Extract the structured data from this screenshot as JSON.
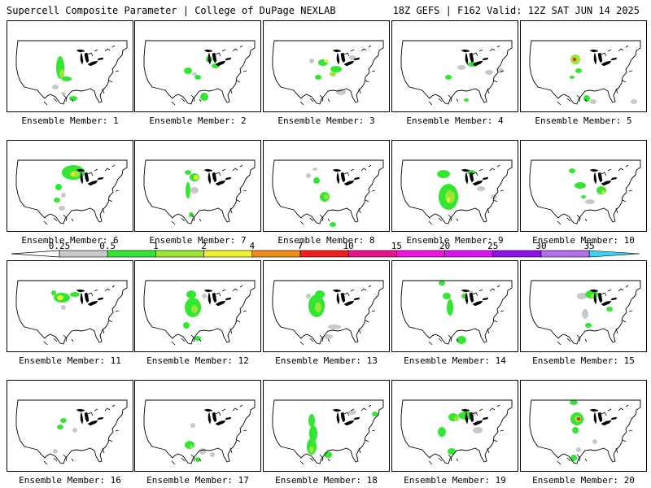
{
  "header": {
    "left_title": "Supercell Composite Parameter | College of DuPage NEXLAB",
    "right_title": "18Z GEFS | F162 Valid: 12Z SAT JUN 14 2025"
  },
  "caption_prefix": "Ensemble Member: ",
  "colorbar": {
    "labels": [
      "0.25",
      "0.5",
      "1",
      "2",
      "4",
      "7",
      "10",
      "15",
      "20",
      "25",
      "30",
      "35"
    ],
    "colors": [
      "#c8c8c8",
      "#32e632",
      "#9be632",
      "#f0f032",
      "#f08c1e",
      "#f01e1e",
      "#e6148c",
      "#f014dc",
      "#dc14f0",
      "#8c14e6",
      "#b46ee6",
      "#3cd2f0"
    ]
  },
  "members": [
    {
      "label": "Ensemble Member: 1",
      "member": 1
    },
    {
      "label": "Ensemble Member: 2",
      "member": 2
    },
    {
      "label": "Ensemble Member: 3",
      "member": 3
    },
    {
      "label": "Ensemble Member: 4",
      "member": 4
    },
    {
      "label": "Ensemble Member: 5",
      "member": 5
    },
    {
      "label": "Ensemble Member: 6",
      "member": 6
    },
    {
      "label": "Ensemble Member: 7",
      "member": 7
    },
    {
      "label": "Ensemble Member: 8",
      "member": 8
    },
    {
      "label": "Ensemble Member: 9",
      "member": 9
    },
    {
      "label": "Ensemble Member: 10",
      "member": 10
    },
    {
      "label": "Ensemble Member: 11",
      "member": 11
    },
    {
      "label": "Ensemble Member: 12",
      "member": 12
    },
    {
      "label": "Ensemble Member: 13",
      "member": 13
    },
    {
      "label": "Ensemble Member: 14",
      "member": 14
    },
    {
      "label": "Ensemble Member: 15",
      "member": 15
    },
    {
      "label": "Ensemble Member: 16",
      "member": 16
    },
    {
      "label": "Ensemble Member: 17",
      "member": 17
    },
    {
      "label": "Ensemble Member: 18",
      "member": 18
    },
    {
      "label": "Ensemble Member: 19",
      "member": 19
    },
    {
      "label": "Ensemble Member: 20",
      "member": 20
    }
  ]
}
